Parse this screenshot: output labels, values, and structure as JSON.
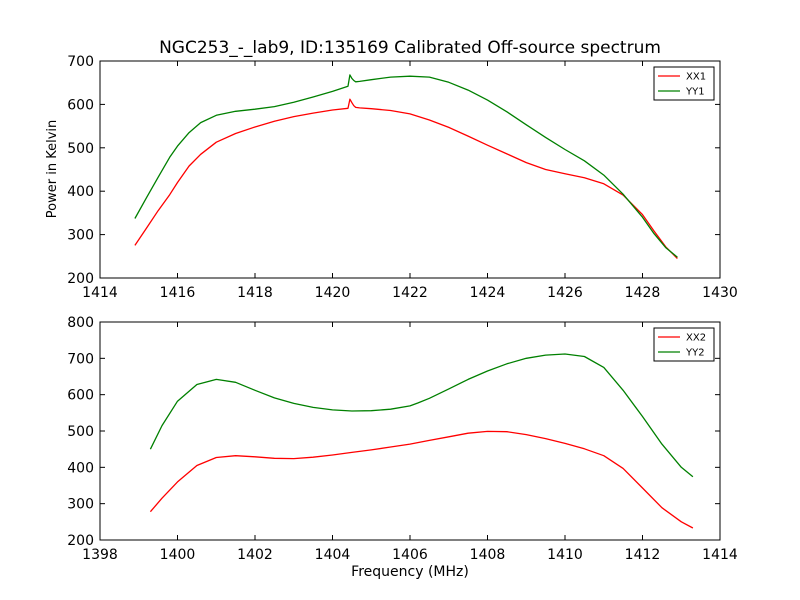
{
  "figure": {
    "title": "NGC253_-_lab9, ID:135169 Calibrated Off-source spectrum",
    "xlabel": "Frequency (MHz)",
    "ylabel": "Power in Kelvin"
  },
  "chart_data": [
    {
      "type": "line",
      "xlim": [
        1414,
        1430
      ],
      "ylim": [
        200,
        700
      ],
      "xticks": [
        "1414",
        "1416",
        "1418",
        "1420",
        "1422",
        "1424",
        "1426",
        "1428",
        "1430"
      ],
      "yticks": [
        "200",
        "300",
        "400",
        "500",
        "600",
        "700"
      ],
      "legend_position": "top-right",
      "grid": false,
      "series": [
        {
          "name": "XX1",
          "color": "#ff0000",
          "x": [
            1414.9,
            1415.2,
            1415.5,
            1415.8,
            1416.0,
            1416.3,
            1416.6,
            1417.0,
            1417.5,
            1418.0,
            1418.5,
            1419.0,
            1419.5,
            1420.0,
            1420.4,
            1420.45,
            1420.5,
            1420.55,
            1420.6,
            1420.7,
            1421.0,
            1421.5,
            1422.0,
            1422.5,
            1423.0,
            1423.5,
            1424.0,
            1424.5,
            1425.0,
            1425.5,
            1426.0,
            1426.5,
            1427.0,
            1427.5,
            1428.0,
            1428.3,
            1428.6,
            1428.9
          ],
          "y": [
            275,
            315,
            355,
            392,
            420,
            458,
            485,
            513,
            533,
            548,
            561,
            572,
            580,
            587,
            591,
            612,
            604,
            597,
            593,
            592,
            590,
            586,
            578,
            564,
            547,
            527,
            506,
            486,
            466,
            450,
            440,
            431,
            417,
            391,
            346,
            308,
            272,
            245
          ]
        },
        {
          "name": "YY1",
          "color": "#008000",
          "x": [
            1414.9,
            1415.2,
            1415.5,
            1415.8,
            1416.0,
            1416.3,
            1416.6,
            1417.0,
            1417.5,
            1418.0,
            1418.5,
            1419.0,
            1419.5,
            1420.0,
            1420.4,
            1420.45,
            1420.5,
            1420.55,
            1420.6,
            1420.7,
            1421.0,
            1421.5,
            1422.0,
            1422.5,
            1423.0,
            1423.5,
            1424.0,
            1424.5,
            1425.0,
            1425.5,
            1426.0,
            1426.5,
            1427.0,
            1427.5,
            1428.0,
            1428.3,
            1428.6,
            1428.9
          ],
          "y": [
            337,
            385,
            432,
            478,
            504,
            535,
            558,
            575,
            584,
            589,
            595,
            605,
            617,
            630,
            642,
            668,
            660,
            655,
            652,
            653,
            657,
            663,
            665,
            663,
            651,
            633,
            610,
            583,
            553,
            524,
            496,
            470,
            437,
            393,
            340,
            302,
            270,
            248
          ]
        }
      ]
    },
    {
      "type": "line",
      "xlim": [
        1398,
        1414
      ],
      "ylim": [
        200,
        800
      ],
      "xticks": [
        "1398",
        "1400",
        "1402",
        "1404",
        "1406",
        "1408",
        "1410",
        "1412",
        "1414"
      ],
      "yticks": [
        "200",
        "300",
        "400",
        "500",
        "600",
        "700",
        "800"
      ],
      "legend_position": "top-right",
      "grid": false,
      "series": [
        {
          "name": "XX2",
          "color": "#ff0000",
          "x": [
            1399.3,
            1399.6,
            1400.0,
            1400.5,
            1401.0,
            1401.5,
            1402.0,
            1402.5,
            1403.0,
            1403.5,
            1404.0,
            1404.5,
            1405.0,
            1405.5,
            1406.0,
            1406.5,
            1407.0,
            1407.5,
            1408.0,
            1408.5,
            1409.0,
            1409.5,
            1410.0,
            1410.5,
            1411.0,
            1411.5,
            1412.0,
            1412.5,
            1413.0,
            1413.3
          ],
          "y": [
            278,
            315,
            360,
            405,
            427,
            432,
            429,
            425,
            424,
            428,
            434,
            441,
            448,
            456,
            464,
            474,
            484,
            494,
            499,
            498,
            490,
            479,
            466,
            451,
            432,
            397,
            343,
            289,
            250,
            233
          ]
        },
        {
          "name": "YY2",
          "color": "#008000",
          "x": [
            1399.3,
            1399.6,
            1400.0,
            1400.5,
            1401.0,
            1401.5,
            1402.0,
            1402.5,
            1403.0,
            1403.5,
            1404.0,
            1404.5,
            1405.0,
            1405.5,
            1406.0,
            1406.2,
            1406.5,
            1407.0,
            1407.5,
            1408.0,
            1408.5,
            1409.0,
            1409.5,
            1410.0,
            1410.5,
            1411.0,
            1411.5,
            1412.0,
            1412.5,
            1413.0,
            1413.3
          ],
          "y": [
            450,
            515,
            582,
            628,
            642,
            634,
            612,
            591,
            576,
            565,
            558,
            555,
            556,
            560,
            569,
            577,
            590,
            616,
            642,
            665,
            685,
            700,
            709,
            712,
            705,
            675,
            612,
            540,
            464,
            400,
            374
          ]
        }
      ]
    }
  ]
}
